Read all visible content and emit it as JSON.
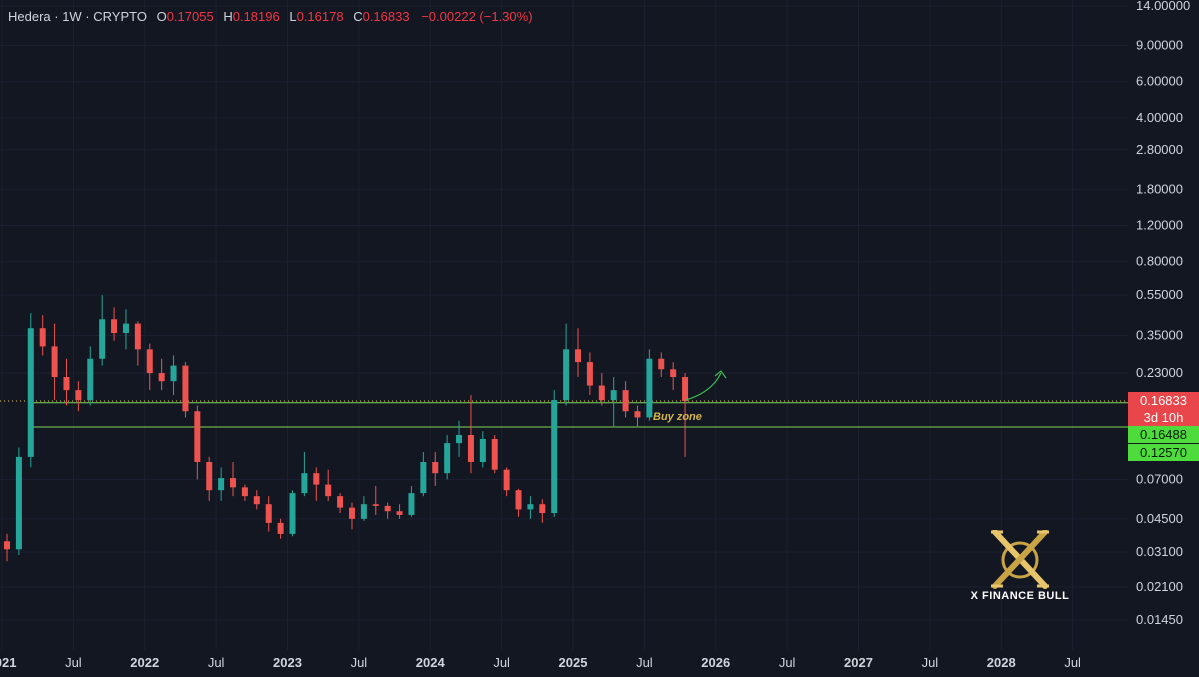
{
  "legend": {
    "symbol": "Hedera · 1W · CRYPTO",
    "open_label": "O",
    "open": "0.17055",
    "high_label": "H",
    "high": "0.18196",
    "low_label": "L",
    "low": "0.16178",
    "close_label": "C",
    "close": "0.16833",
    "change": "−0.00222 (−1.30%)"
  },
  "badges": {
    "last_price": "0.16833",
    "countdown": "3d 10h",
    "upper_level": "0.16488",
    "lower_level": "0.12570"
  },
  "annotation": {
    "buy_zone": "Buy zone"
  },
  "watermark": {
    "brand": "X FINANCE BULL"
  },
  "colors": {
    "background": "#131722",
    "up": "#26a69a",
    "down": "#ef5350",
    "level_line": "#7ed957",
    "annotation": "#d4b54c"
  },
  "chart_data": {
    "type": "candlestick",
    "scale": "log",
    "y_ticks": [
      "14.00000",
      "9.00000",
      "6.00000",
      "4.00000",
      "2.80000",
      "1.80000",
      "1.20000",
      "0.80000",
      "0.55000",
      "0.35000",
      "0.23000",
      "0.16833",
      "0.16488",
      "0.12570",
      "0.07000",
      "0.04500",
      "0.03100",
      "0.02100",
      "0.01450"
    ],
    "x_ticks": [
      "2021",
      "Jul",
      "2022",
      "Jul",
      "2023",
      "Jul",
      "2024",
      "Jul",
      "2025",
      "Jul",
      "2026",
      "Jul",
      "2027",
      "Jul",
      "2028",
      "Jul"
    ],
    "levels": [
      0.16488,
      0.1257
    ],
    "last_price": 0.16833,
    "series": [
      {
        "t": "2021-01",
        "o": 0.035,
        "h": 0.038,
        "l": 0.028,
        "c": 0.032
      },
      {
        "t": "2021-02",
        "o": 0.032,
        "h": 0.1,
        "l": 0.03,
        "c": 0.09
      },
      {
        "t": "2021-03",
        "o": 0.09,
        "h": 0.45,
        "l": 0.08,
        "c": 0.38
      },
      {
        "t": "2021-04",
        "o": 0.38,
        "h": 0.44,
        "l": 0.28,
        "c": 0.31
      },
      {
        "t": "2021-05",
        "o": 0.31,
        "h": 0.4,
        "l": 0.17,
        "c": 0.22
      },
      {
        "t": "2021-06",
        "o": 0.22,
        "h": 0.27,
        "l": 0.16,
        "c": 0.19
      },
      {
        "t": "2021-07",
        "o": 0.19,
        "h": 0.21,
        "l": 0.15,
        "c": 0.17
      },
      {
        "t": "2021-08",
        "o": 0.17,
        "h": 0.31,
        "l": 0.16,
        "c": 0.27
      },
      {
        "t": "2021-09",
        "o": 0.27,
        "h": 0.55,
        "l": 0.25,
        "c": 0.42
      },
      {
        "t": "2021-10",
        "o": 0.42,
        "h": 0.48,
        "l": 0.33,
        "c": 0.36
      },
      {
        "t": "2021-11",
        "o": 0.36,
        "h": 0.47,
        "l": 0.3,
        "c": 0.4
      },
      {
        "t": "2021-12",
        "o": 0.4,
        "h": 0.41,
        "l": 0.25,
        "c": 0.3
      },
      {
        "t": "2022-01",
        "o": 0.3,
        "h": 0.32,
        "l": 0.19,
        "c": 0.23
      },
      {
        "t": "2022-02",
        "o": 0.23,
        "h": 0.27,
        "l": 0.19,
        "c": 0.21
      },
      {
        "t": "2022-03",
        "o": 0.21,
        "h": 0.28,
        "l": 0.18,
        "c": 0.25
      },
      {
        "t": "2022-04",
        "o": 0.25,
        "h": 0.26,
        "l": 0.14,
        "c": 0.15
      },
      {
        "t": "2022-05",
        "o": 0.15,
        "h": 0.16,
        "l": 0.07,
        "c": 0.085
      },
      {
        "t": "2022-06",
        "o": 0.085,
        "h": 0.09,
        "l": 0.055,
        "c": 0.062
      },
      {
        "t": "2022-07",
        "o": 0.062,
        "h": 0.08,
        "l": 0.055,
        "c": 0.071
      },
      {
        "t": "2022-08",
        "o": 0.071,
        "h": 0.085,
        "l": 0.058,
        "c": 0.064
      },
      {
        "t": "2022-09",
        "o": 0.064,
        "h": 0.066,
        "l": 0.055,
        "c": 0.058
      },
      {
        "t": "2022-10",
        "o": 0.058,
        "h": 0.062,
        "l": 0.05,
        "c": 0.053
      },
      {
        "t": "2022-11",
        "o": 0.053,
        "h": 0.058,
        "l": 0.039,
        "c": 0.043
      },
      {
        "t": "2022-12",
        "o": 0.043,
        "h": 0.045,
        "l": 0.036,
        "c": 0.038
      },
      {
        "t": "2023-01",
        "o": 0.038,
        "h": 0.062,
        "l": 0.037,
        "c": 0.06
      },
      {
        "t": "2023-02",
        "o": 0.06,
        "h": 0.095,
        "l": 0.058,
        "c": 0.075
      },
      {
        "t": "2023-03",
        "o": 0.075,
        "h": 0.08,
        "l": 0.055,
        "c": 0.066
      },
      {
        "t": "2023-04",
        "o": 0.066,
        "h": 0.078,
        "l": 0.055,
        "c": 0.058
      },
      {
        "t": "2023-05",
        "o": 0.058,
        "h": 0.06,
        "l": 0.048,
        "c": 0.051
      },
      {
        "t": "2023-06",
        "o": 0.051,
        "h": 0.054,
        "l": 0.04,
        "c": 0.045
      },
      {
        "t": "2023-07",
        "o": 0.045,
        "h": 0.058,
        "l": 0.044,
        "c": 0.053
      },
      {
        "t": "2023-08",
        "o": 0.053,
        "h": 0.065,
        "l": 0.047,
        "c": 0.052
      },
      {
        "t": "2023-09",
        "o": 0.052,
        "h": 0.054,
        "l": 0.045,
        "c": 0.049
      },
      {
        "t": "2023-10",
        "o": 0.049,
        "h": 0.053,
        "l": 0.045,
        "c": 0.047
      },
      {
        "t": "2023-11",
        "o": 0.047,
        "h": 0.065,
        "l": 0.046,
        "c": 0.06
      },
      {
        "t": "2023-12",
        "o": 0.06,
        "h": 0.095,
        "l": 0.058,
        "c": 0.085
      },
      {
        "t": "2024-01",
        "o": 0.085,
        "h": 0.095,
        "l": 0.065,
        "c": 0.075
      },
      {
        "t": "2024-02",
        "o": 0.075,
        "h": 0.115,
        "l": 0.07,
        "c": 0.105
      },
      {
        "t": "2024-03",
        "o": 0.105,
        "h": 0.135,
        "l": 0.09,
        "c": 0.115
      },
      {
        "t": "2024-04",
        "o": 0.115,
        "h": 0.18,
        "l": 0.075,
        "c": 0.085
      },
      {
        "t": "2024-05",
        "o": 0.085,
        "h": 0.12,
        "l": 0.08,
        "c": 0.11
      },
      {
        "t": "2024-06",
        "o": 0.11,
        "h": 0.115,
        "l": 0.075,
        "c": 0.078
      },
      {
        "t": "2024-07",
        "o": 0.078,
        "h": 0.08,
        "l": 0.058,
        "c": 0.062
      },
      {
        "t": "2024-08",
        "o": 0.062,
        "h": 0.063,
        "l": 0.046,
        "c": 0.05
      },
      {
        "t": "2024-09",
        "o": 0.05,
        "h": 0.058,
        "l": 0.045,
        "c": 0.053
      },
      {
        "t": "2024-10",
        "o": 0.053,
        "h": 0.056,
        "l": 0.043,
        "c": 0.048
      },
      {
        "t": "2024-11",
        "o": 0.048,
        "h": 0.19,
        "l": 0.046,
        "c": 0.17
      },
      {
        "t": "2024-12",
        "o": 0.17,
        "h": 0.4,
        "l": 0.16,
        "c": 0.3
      },
      {
        "t": "2025-01",
        "o": 0.3,
        "h": 0.38,
        "l": 0.22,
        "c": 0.26
      },
      {
        "t": "2025-02",
        "o": 0.26,
        "h": 0.29,
        "l": 0.18,
        "c": 0.2
      },
      {
        "t": "2025-03",
        "o": 0.2,
        "h": 0.23,
        "l": 0.16,
        "c": 0.17
      },
      {
        "t": "2025-04",
        "o": 0.17,
        "h": 0.22,
        "l": 0.125,
        "c": 0.19
      },
      {
        "t": "2025-05",
        "o": 0.19,
        "h": 0.21,
        "l": 0.14,
        "c": 0.15
      },
      {
        "t": "2025-06",
        "o": 0.15,
        "h": 0.16,
        "l": 0.125,
        "c": 0.14
      },
      {
        "t": "2025-07",
        "o": 0.14,
        "h": 0.3,
        "l": 0.135,
        "c": 0.27
      },
      {
        "t": "2025-08",
        "o": 0.27,
        "h": 0.29,
        "l": 0.22,
        "c": 0.24
      },
      {
        "t": "2025-09",
        "o": 0.24,
        "h": 0.26,
        "l": 0.19,
        "c": 0.22
      },
      {
        "t": "2025-10",
        "o": 0.22,
        "h": 0.23,
        "l": 0.09,
        "c": 0.168
      }
    ]
  }
}
